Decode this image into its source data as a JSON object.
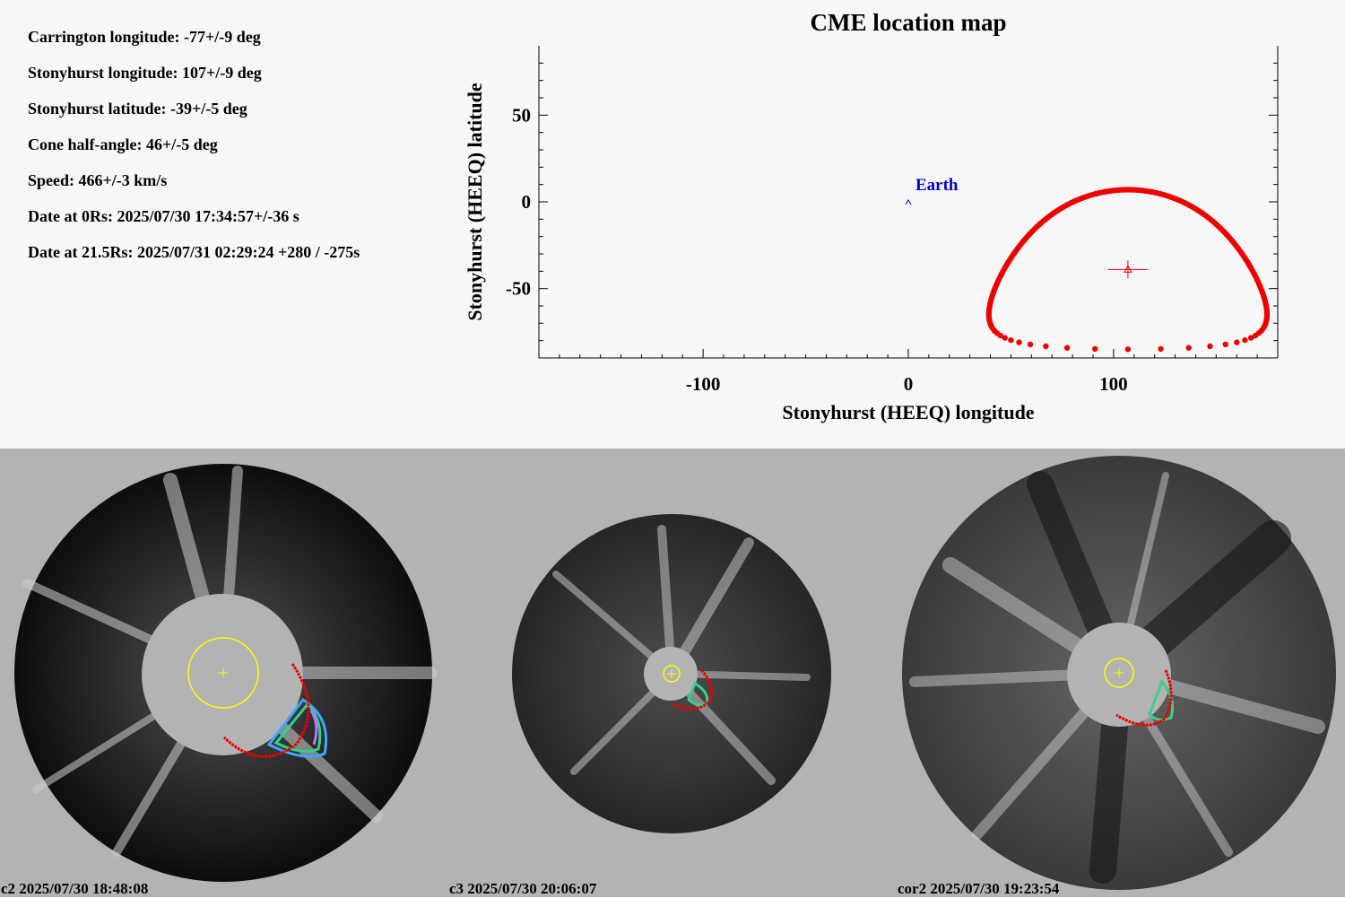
{
  "info": {
    "lines": [
      "Carrington longitude: -77+/-9 deg",
      "Stonyhurst longitude: 107+/-9 deg",
      "Stonyhurst latitude: -39+/-5 deg",
      "Cone half-angle: 46+/-5 deg",
      "Speed: 466+/-3 km/s",
      "Date at 0Rs: 2025/07/30 17:34:57+/-36 s",
      "Date at 21.5Rs: 2025/07/31 02:29:24 +280 / -275s"
    ]
  },
  "chart_data": {
    "type": "scatter",
    "title": "CME location map",
    "xlabel": "Stonyhurst (HEEQ) longitude",
    "ylabel": "Stonyhurst (HEEQ) latitude",
    "xlim": [
      -180,
      180
    ],
    "ylim": [
      -90,
      90
    ],
    "xticks": [
      -100,
      0,
      100
    ],
    "yticks": [
      50,
      0,
      -50
    ],
    "earth": {
      "label": "Earth",
      "lon": 0,
      "lat": 0
    },
    "cme_center": {
      "lon": 107,
      "lat": -39
    },
    "cone_half_angle": 46,
    "colors": {
      "cone": "#ee0000",
      "earth": "#0000cc",
      "axes": "#000000"
    }
  },
  "panels": [
    {
      "label": "c2 2025/07/30 18:48:08"
    },
    {
      "label": "c3 2025/07/30 20:06:07"
    },
    {
      "label": "cor2 2025/07/30 19:23:54"
    }
  ]
}
